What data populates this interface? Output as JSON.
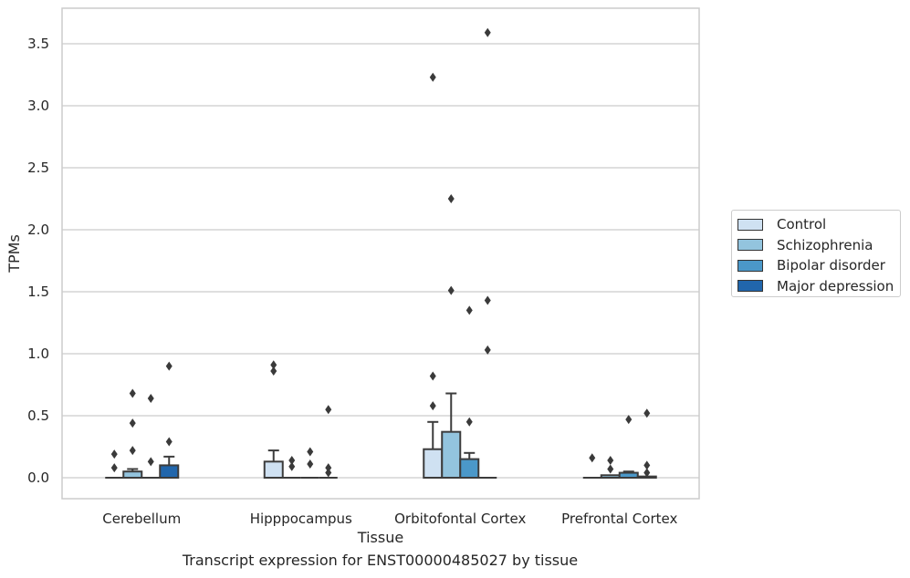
{
  "caption": "Transcript expression for ENST00000485027 by tissue",
  "chart_data": {
    "type": "box",
    "xlabel": "Tissue",
    "ylabel": "TPMs",
    "ylim": [
      -0.18,
      3.77
    ],
    "yticks": [
      "0.0",
      "0.5",
      "1.0",
      "1.5",
      "2.0",
      "2.5",
      "3.0",
      "3.5"
    ],
    "grid": true,
    "legend_position": "right",
    "categories": [
      "Cerebellum",
      "Hipppocampus",
      "Orbitofontal Cortex",
      "Prefrontal Cortex"
    ],
    "series": [
      {
        "name": "Control",
        "color": "#cfe1f2",
        "boxes": [
          {
            "q1": 0.0,
            "median": 0.0,
            "q3": 0.0,
            "whisker_low": 0.0,
            "whisker_high": 0.0,
            "outliers": [
              0.08,
              0.19
            ]
          },
          {
            "q1": 0.0,
            "median": 0.0,
            "q3": 0.13,
            "whisker_low": 0.0,
            "whisker_high": 0.22,
            "outliers": [
              0.86,
              0.91
            ]
          },
          {
            "q1": 0.0,
            "median": 0.0,
            "q3": 0.23,
            "whisker_low": 0.0,
            "whisker_high": 0.45,
            "outliers": [
              0.58,
              0.82,
              3.23
            ]
          },
          {
            "q1": 0.0,
            "median": 0.0,
            "q3": 0.0,
            "whisker_low": 0.0,
            "whisker_high": 0.0,
            "outliers": [
              0.16
            ]
          }
        ]
      },
      {
        "name": "Schizophrenia",
        "color": "#93c4de",
        "boxes": [
          {
            "q1": 0.0,
            "median": 0.0,
            "q3": 0.05,
            "whisker_low": 0.0,
            "whisker_high": 0.07,
            "outliers": [
              0.22,
              0.44,
              0.68
            ]
          },
          {
            "q1": 0.0,
            "median": 0.0,
            "q3": 0.0,
            "whisker_low": 0.0,
            "whisker_high": 0.0,
            "outliers": [
              0.09,
              0.14
            ]
          },
          {
            "q1": 0.0,
            "median": 0.0,
            "q3": 0.37,
            "whisker_low": 0.0,
            "whisker_high": 0.68,
            "outliers": [
              1.51,
              2.25
            ]
          },
          {
            "q1": 0.0,
            "median": 0.0,
            "q3": 0.02,
            "whisker_low": 0.0,
            "whisker_high": 0.02,
            "outliers": [
              0.07,
              0.14
            ]
          }
        ]
      },
      {
        "name": "Bipolar disorder",
        "color": "#4b98c9",
        "boxes": [
          {
            "q1": 0.0,
            "median": 0.0,
            "q3": 0.0,
            "whisker_low": 0.0,
            "whisker_high": 0.0,
            "outliers": [
              0.13,
              0.64
            ]
          },
          {
            "q1": 0.0,
            "median": 0.0,
            "q3": 0.0,
            "whisker_low": 0.0,
            "whisker_high": 0.0,
            "outliers": [
              0.11,
              0.21
            ]
          },
          {
            "q1": 0.0,
            "median": 0.0,
            "q3": 0.15,
            "whisker_low": 0.0,
            "whisker_high": 0.2,
            "outliers": [
              0.45,
              1.35
            ]
          },
          {
            "q1": 0.0,
            "median": 0.0,
            "q3": 0.04,
            "whisker_low": 0.0,
            "whisker_high": 0.05,
            "outliers": [
              0.47
            ]
          }
        ]
      },
      {
        "name": "Major depression",
        "color": "#2166ac",
        "boxes": [
          {
            "q1": 0.0,
            "median": 0.0,
            "q3": 0.1,
            "whisker_low": 0.0,
            "whisker_high": 0.17,
            "outliers": [
              0.29,
              0.9
            ]
          },
          {
            "q1": 0.0,
            "median": 0.0,
            "q3": 0.0,
            "whisker_low": 0.0,
            "whisker_high": 0.0,
            "outliers": [
              0.04,
              0.08,
              0.55
            ]
          },
          {
            "q1": 0.0,
            "median": 0.0,
            "q3": 0.0,
            "whisker_low": 0.0,
            "whisker_high": 0.0,
            "outliers": [
              1.03,
              1.43,
              3.59
            ]
          },
          {
            "q1": 0.0,
            "median": 0.0,
            "q3": 0.01,
            "whisker_low": 0.0,
            "whisker_high": 0.01,
            "outliers": [
              0.04,
              0.1,
              0.52
            ]
          }
        ]
      }
    ]
  }
}
